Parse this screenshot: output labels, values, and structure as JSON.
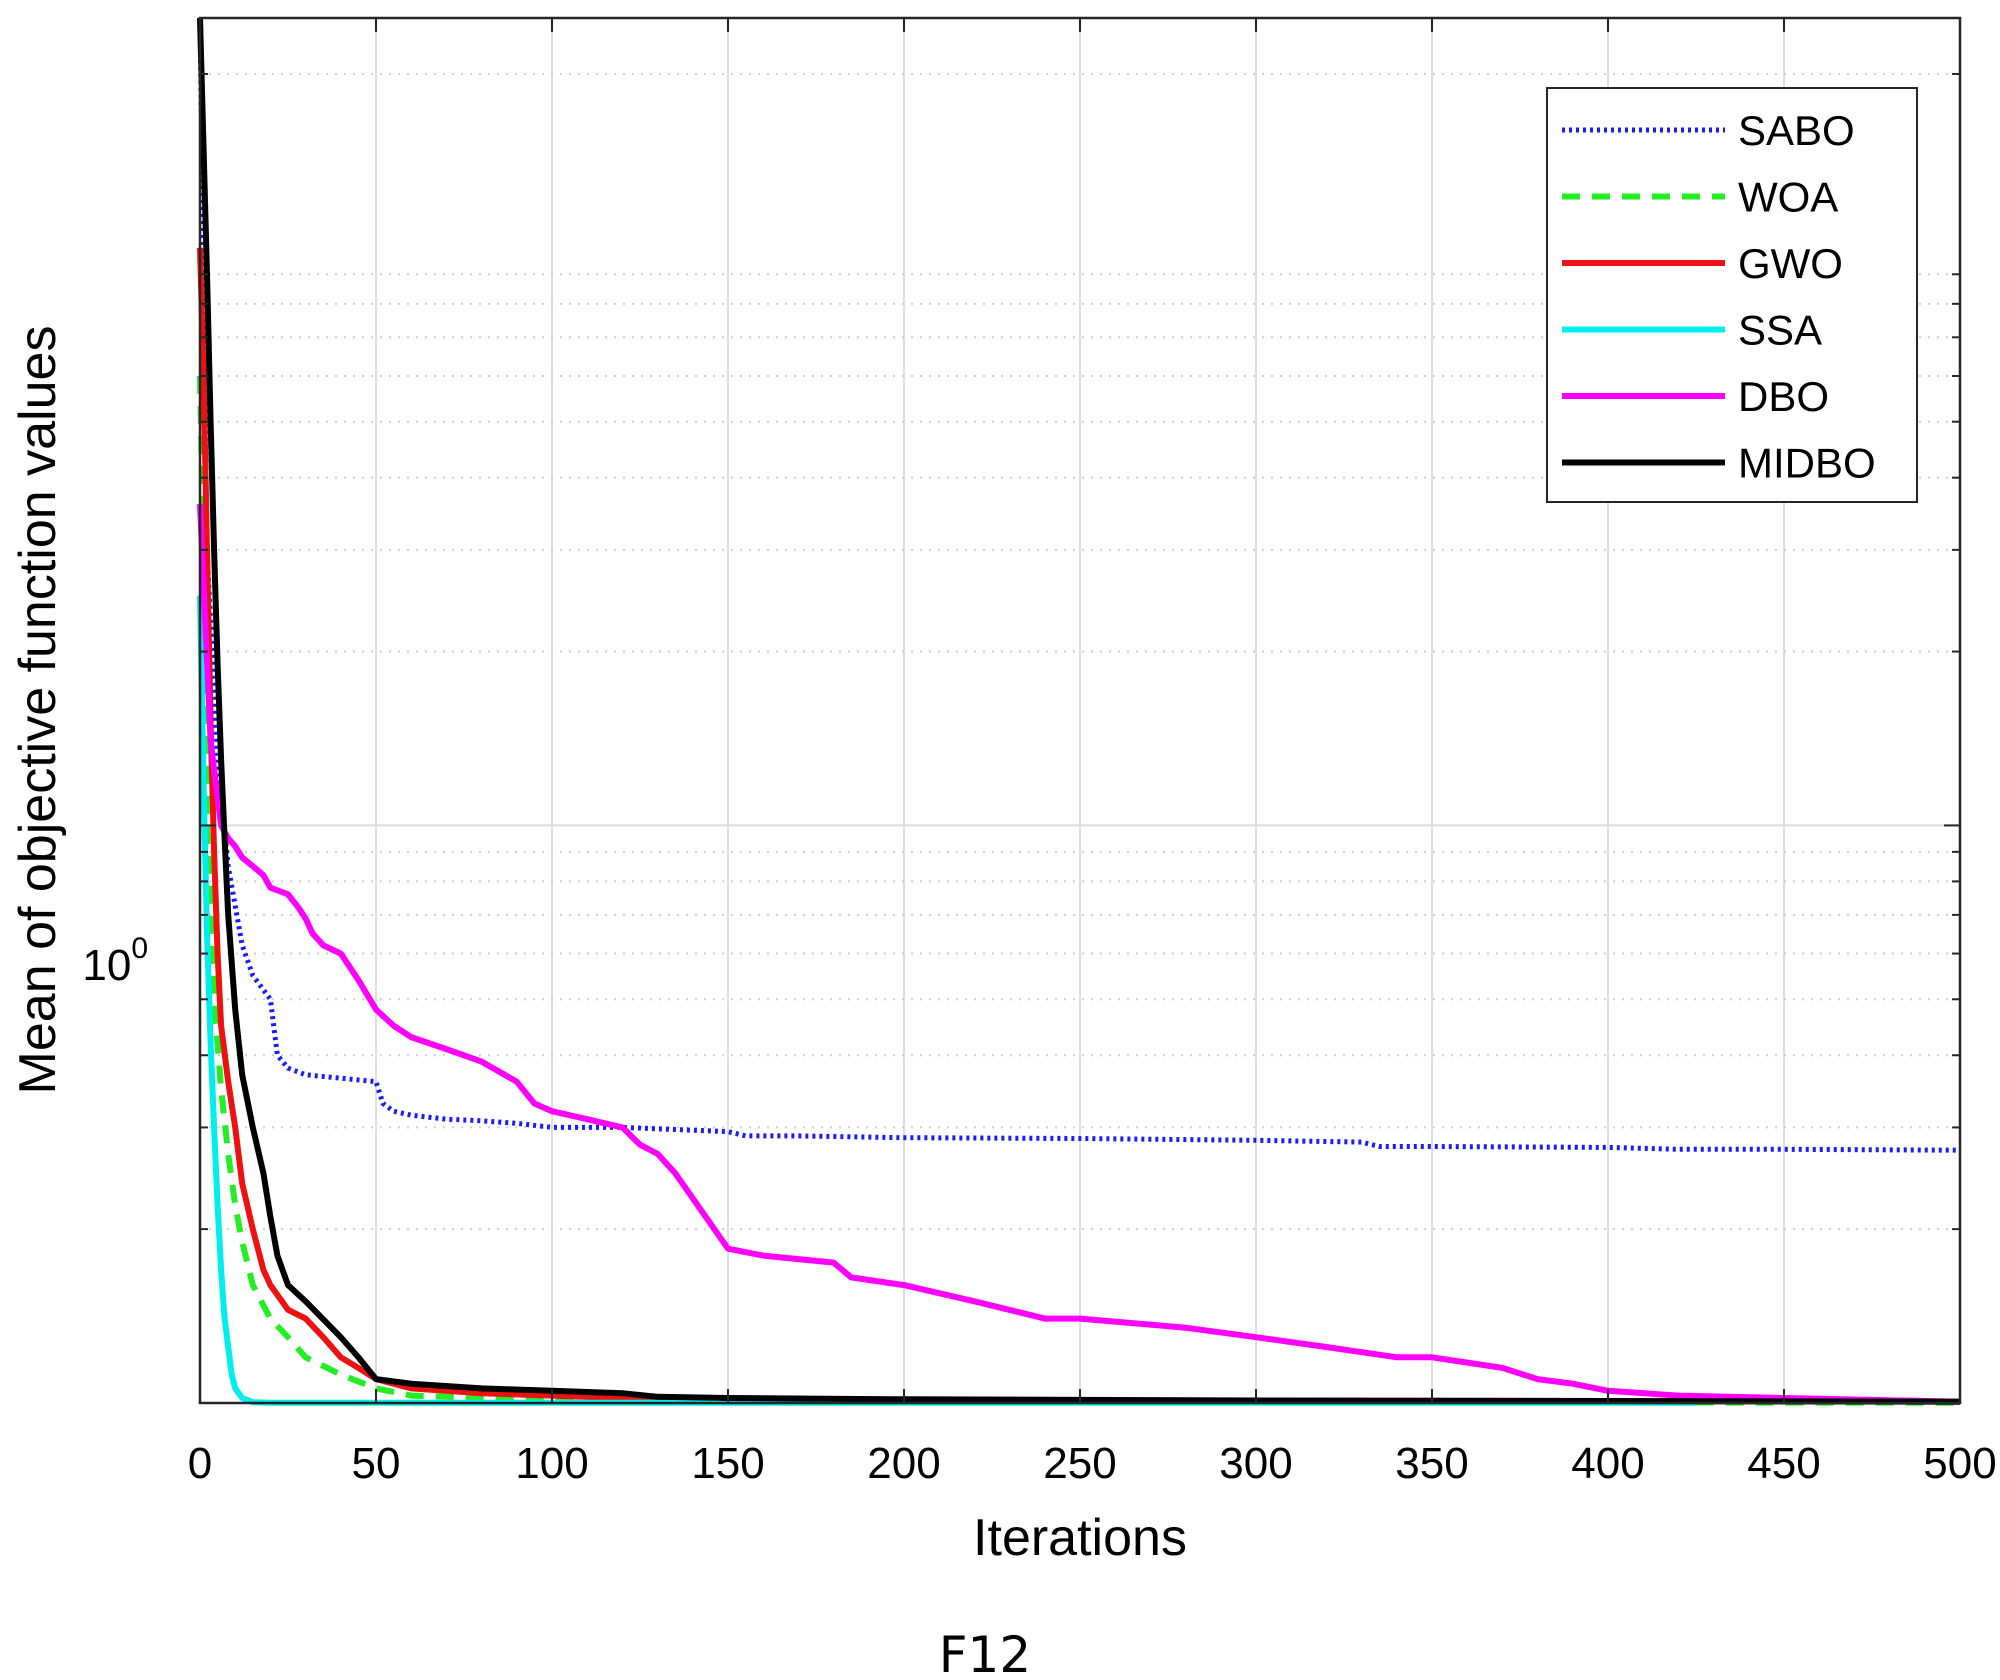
{
  "chart_data": {
    "type": "line",
    "caption": "F12",
    "title": "",
    "xlabel": "Iterations",
    "ylabel": "Mean of objective function values",
    "xlim": [
      0,
      500
    ],
    "ylim": [
      0.1,
      25
    ],
    "yscale": "log",
    "xticks": [
      0,
      50,
      100,
      150,
      200,
      250,
      300,
      350,
      400,
      450,
      500
    ],
    "yticks": [
      {
        "value": 1,
        "base": "10",
        "exponent": "0"
      }
    ],
    "grid": true,
    "legend_position": "top-right",
    "series": [
      {
        "name": "SABO",
        "color": "#1a1aff",
        "style": "dotted",
        "x": [
          0,
          2,
          5,
          8,
          12,
          15,
          20,
          22,
          25,
          30,
          40,
          50,
          52,
          55,
          60,
          70,
          80,
          90,
          100,
          120,
          150,
          155,
          170,
          200,
          250,
          300,
          330,
          335,
          350,
          400,
          420,
          450,
          500
        ],
        "y": [
          25,
          3.0,
          1.3,
          0.85,
          0.62,
          0.55,
          0.5,
          0.4,
          0.38,
          0.37,
          0.365,
          0.36,
          0.33,
          0.32,
          0.315,
          0.31,
          0.308,
          0.305,
          0.3,
          0.3,
          0.295,
          0.29,
          0.29,
          0.288,
          0.287,
          0.285,
          0.283,
          0.278,
          0.278,
          0.277,
          0.275,
          0.275,
          0.274
        ]
      },
      {
        "name": "WOA",
        "color": "#22ee22",
        "style": "dashed",
        "x": [
          0,
          1,
          2,
          4,
          6,
          8,
          10,
          12,
          15,
          20,
          25,
          30,
          40,
          50,
          60,
          80,
          120,
          200,
          300,
          400,
          500
        ],
        "y": [
          6,
          3.0,
          1.0,
          0.5,
          0.35,
          0.27,
          0.22,
          0.19,
          0.16,
          0.14,
          0.13,
          0.12,
          0.112,
          0.106,
          0.103,
          0.102,
          0.101,
          0.1005,
          0.1003,
          0.1002,
          0.1001
        ]
      },
      {
        "name": "GWO",
        "color": "#ee1111",
        "style": "solid",
        "x": [
          0,
          1,
          2,
          3,
          4,
          5,
          6,
          8,
          10,
          12,
          15,
          18,
          20,
          25,
          30,
          35,
          40,
          45,
          50,
          55,
          60,
          80,
          100,
          130,
          200,
          300,
          400,
          500
        ],
        "y": [
          10,
          6,
          3.0,
          1.5,
          0.9,
          0.6,
          0.45,
          0.36,
          0.3,
          0.24,
          0.2,
          0.17,
          0.16,
          0.145,
          0.14,
          0.13,
          0.12,
          0.115,
          0.11,
          0.108,
          0.106,
          0.104,
          0.103,
          0.1015,
          0.1012,
          0.101,
          0.1008,
          0.1006
        ]
      },
      {
        "name": "SSA",
        "color": "#00eeee",
        "style": "solid",
        "x": [
          0,
          1,
          2,
          3,
          4,
          5,
          6,
          7,
          8,
          9,
          10,
          12,
          15,
          20,
          50,
          100,
          200,
          300,
          425
        ],
        "y": [
          2.5,
          1.2,
          0.65,
          0.42,
          0.3,
          0.22,
          0.17,
          0.14,
          0.125,
          0.112,
          0.106,
          0.102,
          0.1003,
          0.1001,
          0.1001,
          0.1001,
          0.1001,
          0.1001,
          0.1001
        ]
      },
      {
        "name": "DBO",
        "color": "#ff00ff",
        "style": "solid",
        "x": [
          0,
          3,
          6,
          8,
          10,
          12,
          15,
          18,
          20,
          25,
          28,
          30,
          32,
          35,
          40,
          45,
          50,
          55,
          60,
          70,
          80,
          90,
          95,
          100,
          110,
          120,
          125,
          130,
          135,
          150,
          160,
          180,
          185,
          200,
          220,
          240,
          250,
          280,
          300,
          320,
          340,
          350,
          370,
          380,
          390,
          400,
          420,
          450,
          500
        ],
        "y": [
          3.6,
          1.4,
          1.0,
          0.95,
          0.92,
          0.88,
          0.85,
          0.82,
          0.78,
          0.76,
          0.72,
          0.69,
          0.65,
          0.62,
          0.6,
          0.54,
          0.48,
          0.45,
          0.43,
          0.41,
          0.39,
          0.36,
          0.33,
          0.32,
          0.31,
          0.3,
          0.28,
          0.27,
          0.25,
          0.185,
          0.18,
          0.175,
          0.165,
          0.16,
          0.15,
          0.14,
          0.14,
          0.135,
          0.13,
          0.125,
          0.12,
          0.12,
          0.115,
          0.11,
          0.108,
          0.105,
          0.103,
          0.102,
          0.1005
        ]
      },
      {
        "name": "MIDBO",
        "color": "#000000",
        "style": "solid",
        "x": [
          0,
          1,
          2,
          3,
          4,
          5,
          6,
          7,
          8,
          10,
          12,
          15,
          18,
          20,
          22,
          25,
          30,
          40,
          45,
          50,
          60,
          80,
          100,
          120,
          130,
          150,
          200,
          300,
          400,
          500
        ],
        "y": [
          25,
          15,
          9,
          5,
          3.0,
          1.9,
          1.3,
          0.95,
          0.7,
          0.48,
          0.37,
          0.3,
          0.25,
          0.21,
          0.18,
          0.16,
          0.15,
          0.13,
          0.12,
          0.11,
          0.108,
          0.106,
          0.105,
          0.104,
          0.1025,
          0.102,
          0.1015,
          0.101,
          0.1008,
          0.1005
        ]
      }
    ]
  }
}
